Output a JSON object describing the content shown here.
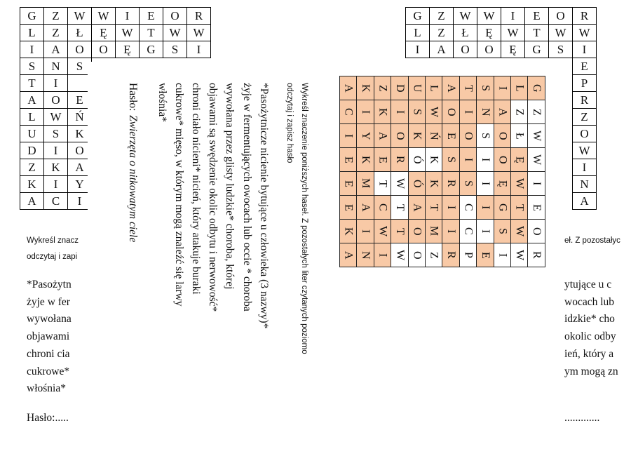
{
  "left_page": {
    "grid": [
      [
        "G",
        "Z",
        "W",
        "W",
        "I",
        "E",
        "O",
        "R"
      ],
      [
        "L",
        "Z",
        "Ł",
        "Ę",
        "W",
        "T",
        "W",
        "W"
      ],
      [
        "I",
        "A",
        "O",
        "O",
        "Ę",
        "G",
        "S",
        "I"
      ],
      [
        "S",
        "N",
        "S"
      ],
      [
        "T",
        "I"
      ],
      [
        "A",
        "O",
        "E"
      ],
      [
        "L",
        "W",
        "Ń"
      ],
      [
        "U",
        "S",
        "K"
      ],
      [
        "D",
        "I",
        "O"
      ],
      [
        "Z",
        "K",
        "A"
      ],
      [
        "K",
        "I",
        "Y"
      ],
      [
        "A",
        "C",
        "I"
      ]
    ],
    "instruction_lines": [
      "Wykreśl znacz",
      "odczytaj i zapi"
    ],
    "clue_lines": [
      "*Pasożytn",
      "żyje w fer",
      "wywołana",
      "objawami",
      "chroni cia",
      "cukrowe*",
      "włośnia*"
    ],
    "password": "Hasło:....."
  },
  "right_page": {
    "grid": [
      [
        "G",
        "Z",
        "W",
        "W",
        "I",
        "E",
        "O",
        "R"
      ],
      [
        "L",
        "Z",
        "Ł",
        "Ę",
        "W",
        "T",
        "W",
        "W"
      ],
      [
        "I",
        "A",
        "O",
        "O",
        "Ę",
        "G",
        "S",
        "I"
      ]
    ],
    "last_column": [
      "E",
      "P",
      "R",
      "Z",
      "O",
      "W",
      "I",
      "N",
      "A"
    ],
    "instruction_line": "eł. Z pozostałyc",
    "clue_lines": [
      "ytujące u c",
      "wocach lub",
      "idzkie* cho",
      "okolic odby",
      "ień, który a",
      "ym mogą zn"
    ],
    "password": "............."
  },
  "rotated_page": {
    "instruction_lines": [
      "Wykreśl znaczenie poniższych haseł. Z pozostałych liter czytanych poziomo",
      "odczytaj i zapisz hasło"
    ],
    "clue_lines": [
      "*Pasożytnicze nicienie bytujące u człowieka (3 nazwy)*",
      "żyje w fermentujących owocach lub occie * choroba",
      "wywołana przez glisty ludzkie* choroba, której",
      "objawami są swędzenie okolic odbytu i nerwowość*",
      "chroni ciało nicieni* nicień, który atakuje buraki",
      "cukrowe* mięso, w którym mogą znaleźć się larwy",
      "włośnia*"
    ],
    "password_label": "Hasło:",
    "password": "Zwierzęta o nitkowatym ciele",
    "grid": [
      [
        "A",
        "K",
        "Z",
        "D",
        "U",
        "L",
        "A",
        "T",
        "S",
        "I",
        "L",
        "G"
      ],
      [
        "C",
        "I",
        "K",
        "I",
        "S",
        "W",
        "O",
        "I",
        "N",
        "A",
        "Z",
        "Z"
      ],
      [
        "I",
        "Y",
        "A",
        "O",
        "K",
        "Ń",
        "E",
        "O",
        "S",
        "O",
        "Ł",
        "W"
      ],
      [
        "E",
        "K",
        "E",
        "R",
        "Ó",
        "K",
        "S",
        "I",
        "I",
        "O",
        "Ę",
        "W"
      ],
      [
        "E",
        "M",
        "T",
        "W",
        "Ó",
        "K",
        "R",
        "S",
        "I",
        "Ę",
        "W",
        "I"
      ],
      [
        "E",
        "A",
        "C",
        "T",
        "A",
        "T",
        "I",
        "C",
        "I",
        "G",
        "T",
        "E"
      ],
      [
        "K",
        "I",
        "W",
        "T",
        "O",
        "M",
        "I",
        "C",
        "I",
        "S",
        "W",
        "O"
      ],
      [
        "A",
        "N",
        "I",
        "W",
        "O",
        "Z",
        "R",
        "P",
        "E",
        "I",
        "W",
        "R"
      ]
    ]
  }
}
